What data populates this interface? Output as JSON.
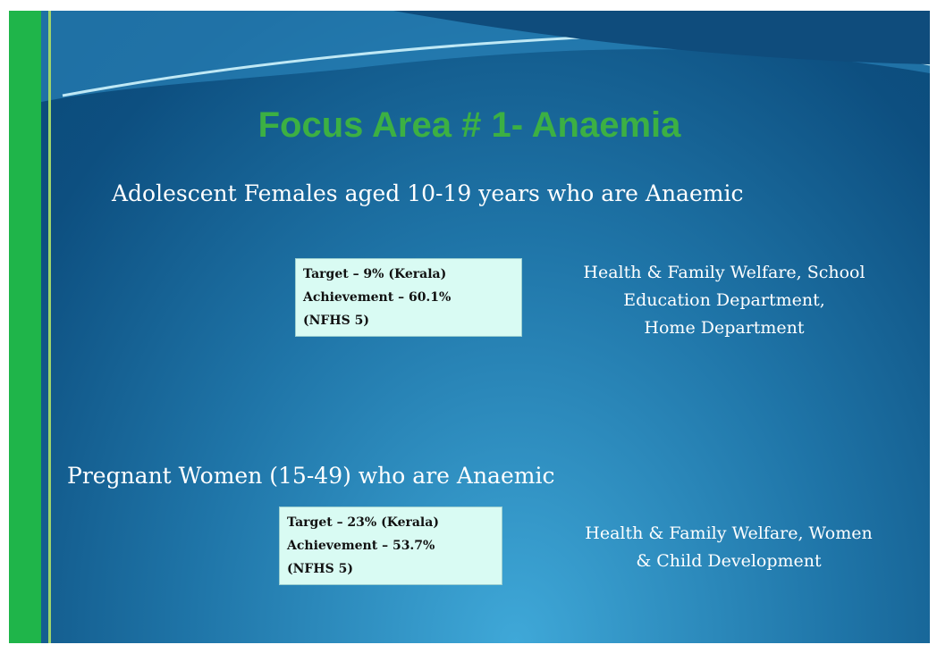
{
  "title": "Focus Area # 1- Anaemia",
  "sections": [
    {
      "heading": "Adolescent Females aged 10-19 years who are Anaemic",
      "box": [
        "Target – 9% (Kerala)",
        "Achievement – 60.1%",
        "(NFHS 5)"
      ],
      "departments": [
        "Health & Family Welfare, School",
        "Education Department,",
        "Home Department"
      ]
    },
    {
      "heading": "Pregnant Women (15-49) who are Anaemic",
      "box": [
        "Target – 23% (Kerala)",
        "Achievement – 53.7%",
        "(NFHS 5)"
      ],
      "departments": [
        "Health & Family Welfare, Women",
        "& Child Development"
      ]
    }
  ]
}
